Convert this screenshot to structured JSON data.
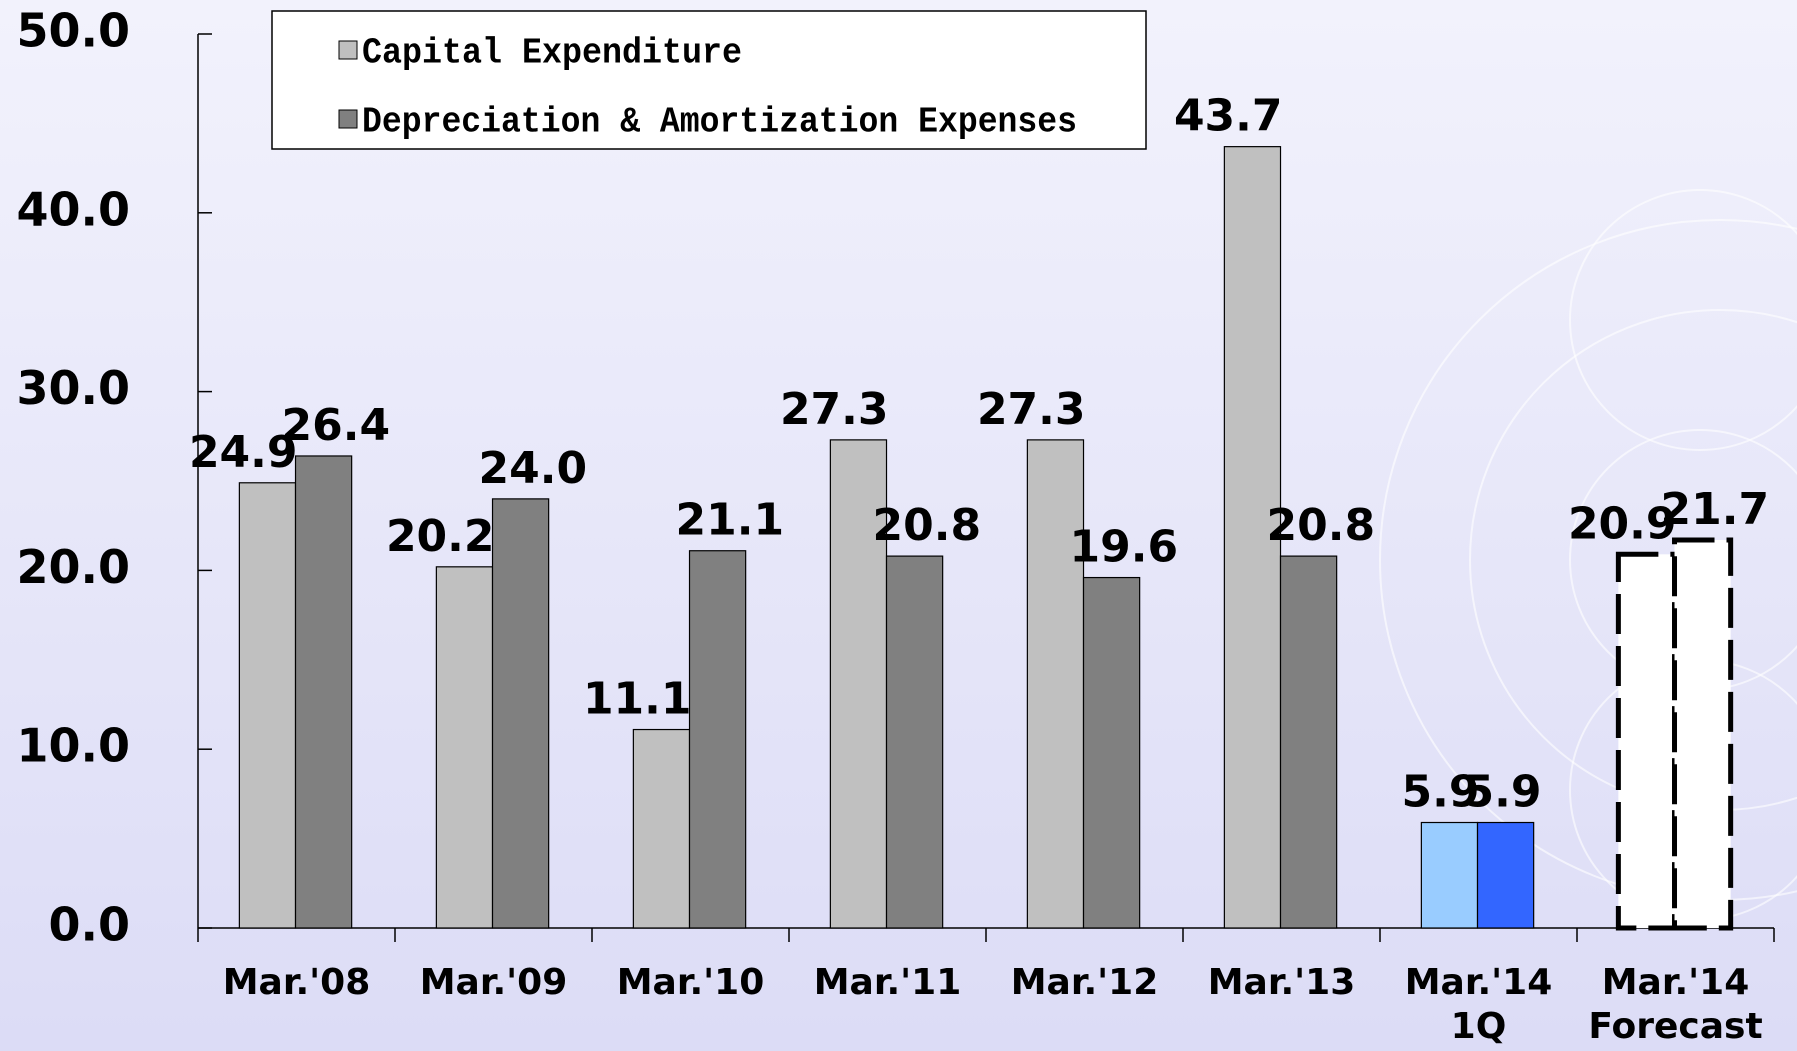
{
  "chart_data": {
    "type": "bar",
    "categories": [
      "Mar.'08",
      "Mar.'09",
      "Mar.'10",
      "Mar.'11",
      "Mar.'12",
      "Mar.'13",
      [
        "Mar.'14",
        "1Q"
      ],
      [
        "Mar.'14",
        "Forecast"
      ]
    ],
    "series": [
      {
        "name": "Capital Expenditure",
        "color": "#c0c0c0",
        "values": [
          24.9,
          20.2,
          11.1,
          27.3,
          27.3,
          43.7,
          5.9,
          20.9
        ],
        "value_labels": [
          "24.9",
          "20.2",
          "11.1",
          "27.3",
          "27.3",
          "43.7",
          "5.9",
          "20.9"
        ],
        "colors": [
          "#c0c0c0",
          "#c0c0c0",
          "#c0c0c0",
          "#c0c0c0",
          "#c0c0c0",
          "#c0c0c0",
          "#99ccff",
          "#ffffff"
        ]
      },
      {
        "name": "Depreciation & Amortization Expenses",
        "color": "#808080",
        "values": [
          26.4,
          24.0,
          21.1,
          20.8,
          19.6,
          20.8,
          5.9,
          21.7
        ],
        "value_labels": [
          "26.4",
          "24.0",
          "21.1",
          "20.8",
          "19.6",
          "20.8",
          "5.9",
          "21.7"
        ],
        "colors": [
          "#808080",
          "#808080",
          "#808080",
          "#808080",
          "#808080",
          "#808080",
          "#3366ff",
          "#ffffff"
        ]
      }
    ],
    "point_styles": [
      "solid",
      "solid",
      "solid",
      "solid",
      "solid",
      "solid",
      "solid",
      "dashed"
    ],
    "ylim": [
      0,
      50
    ],
    "yticks": [
      {
        "value": 0,
        "label": "0.0"
      },
      {
        "value": 10,
        "label": "10.0"
      },
      {
        "value": 20,
        "label": "20.0"
      },
      {
        "value": 30,
        "label": "30.0"
      },
      {
        "value": 40,
        "label": "40.0"
      },
      {
        "value": 50,
        "label": "50.0"
      }
    ],
    "grid": false,
    "legend": "top-left"
  }
}
